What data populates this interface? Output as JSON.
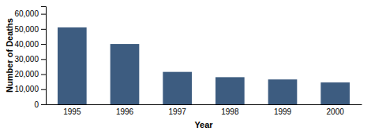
{
  "chart_data": {
    "type": "bar",
    "categories": [
      "1995",
      "1996",
      "1997",
      "1998",
      "1999",
      "2000"
    ],
    "values": [
      51000,
      40000,
      21500,
      18000,
      16500,
      14500
    ],
    "color": "#3d5c80",
    "xlabel": "Year",
    "ylabel": "Number of Deaths",
    "ylim": [
      0,
      65000
    ],
    "yticks": [
      0,
      {
        "value": 10000,
        "label": "10,000"
      },
      {
        "value": 20000,
        "label": "20,000"
      },
      {
        "value": 30000,
        "label": "30,000"
      },
      {
        "value": 40000,
        "label": "40,000"
      },
      {
        "value": 50000,
        "label": "50,000"
      },
      {
        "value": 60000,
        "label": "60,000"
      }
    ],
    "grid": false
  }
}
